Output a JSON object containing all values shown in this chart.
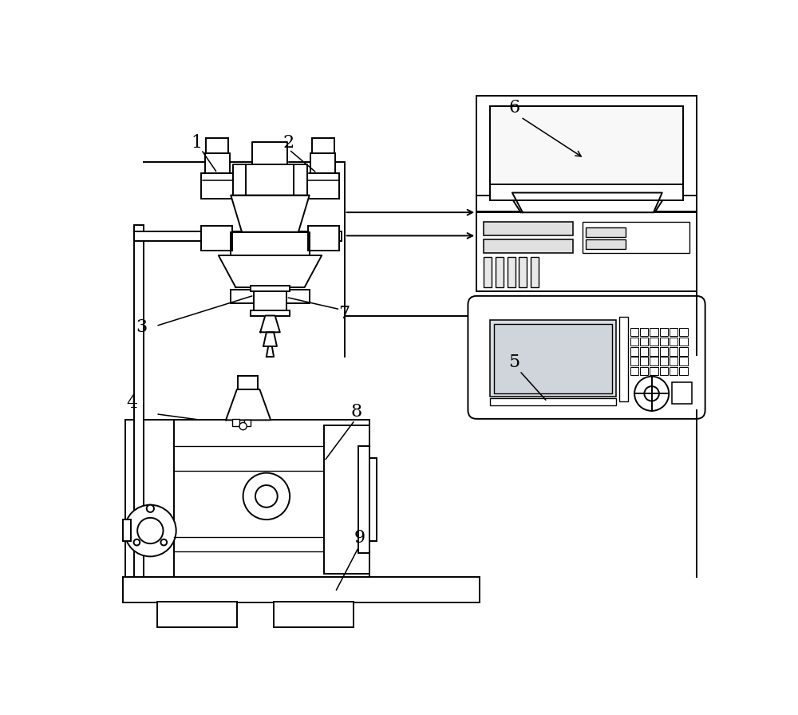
{
  "background_color": "#ffffff",
  "line_color": "#000000",
  "lw": 1.4,
  "fig_w": 10.0,
  "fig_h": 8.96
}
